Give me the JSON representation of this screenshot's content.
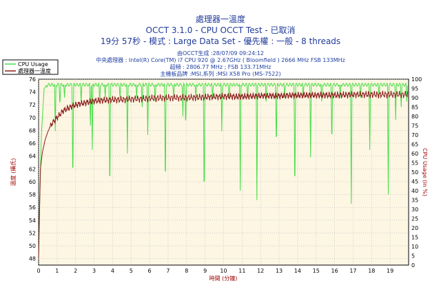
{
  "header": {
    "title_line1": "處理器一溫度",
    "title_line2": "OCCT 3.1.0 - CPU OCCT Test - 已取消",
    "title_line3": "19分 57秒 - 模式 : Large Data Set - 優先權 : 一般 - 8 threads",
    "info_generated": "由OCCT生成 :28/07/09 09:24:12",
    "info_cpu": "中央處理器 : Intel(R) Core(TM) i7 CPU 920 @ 2.67GHz ( Bloomfield ) 2666 MHz FSB 133MHz",
    "info_overclock": "超頻 : 2806.77 MHz ; FSB 133.71MHz",
    "info_board": "主機板品牌 :MSI,系列 :MSI X58 Pro (MS-7522)"
  },
  "chart_data": {
    "type": "line",
    "xlabel": "時間 (分鐘)",
    "ylabel_left": "溫度 (攝氏)",
    "ylabel_right": "CPU Usage (in %)",
    "xlim": [
      0,
      20
    ],
    "ylim_left": [
      47,
      76
    ],
    "ylim_right": [
      0,
      100
    ],
    "x_ticks": [
      0,
      1,
      2,
      3,
      4,
      5,
      6,
      7,
      8,
      9,
      10,
      11,
      12,
      13,
      14,
      15,
      16,
      17,
      18,
      19
    ],
    "y_ticks_left": [
      48,
      50,
      52,
      54,
      56,
      58,
      60,
      62,
      64,
      66,
      68,
      70,
      72,
      74,
      76
    ],
    "y_ticks_right": [
      0,
      5,
      10,
      15,
      20,
      25,
      30,
      35,
      40,
      45,
      50,
      55,
      60,
      65,
      70,
      75,
      80,
      85,
      90,
      95,
      100
    ],
    "grid": true,
    "legend_position": "top-left",
    "colors": {
      "cpu_usage": "#44dd44",
      "temperature": "#8b1a1a",
      "plot_bg": "#fdf6e3",
      "grid": "#b8b8b8"
    },
    "series": [
      {
        "name": "CPU Usage",
        "axis": "right",
        "baseline": 97,
        "x": [
          0,
          0.05,
          0.15,
          0.3,
          0.5,
          1.0,
          1.5,
          2.0,
          3.0,
          5.0,
          8.0,
          12.0,
          16.0,
          20.0
        ],
        "values": [
          5,
          30,
          70,
          95,
          97,
          97,
          97,
          97,
          97,
          97,
          97,
          97,
          97,
          97
        ],
        "drops": [
          {
            "x": 0.9,
            "value": 72
          },
          {
            "x": 1.15,
            "value": 85
          },
          {
            "x": 1.4,
            "value": 90
          },
          {
            "x": 1.85,
            "value": 38
          },
          {
            "x": 2.3,
            "value": 88
          },
          {
            "x": 2.8,
            "value": 75
          },
          {
            "x": 2.9,
            "value": 62
          },
          {
            "x": 3.3,
            "value": 88
          },
          {
            "x": 3.6,
            "value": 90
          },
          {
            "x": 3.85,
            "value": 32
          },
          {
            "x": 4.4,
            "value": 90
          },
          {
            "x": 4.8,
            "value": 60
          },
          {
            "x": 5.3,
            "value": 90
          },
          {
            "x": 5.6,
            "value": 85
          },
          {
            "x": 5.9,
            "value": 70
          },
          {
            "x": 6.3,
            "value": 88
          },
          {
            "x": 6.85,
            "value": 35
          },
          {
            "x": 7.3,
            "value": 90
          },
          {
            "x": 7.8,
            "value": 80
          },
          {
            "x": 7.95,
            "value": 72
          },
          {
            "x": 8.5,
            "value": 90
          },
          {
            "x": 8.95,
            "value": 28
          },
          {
            "x": 9.4,
            "value": 90
          },
          {
            "x": 9.9,
            "value": 72
          },
          {
            "x": 10.3,
            "value": 90
          },
          {
            "x": 10.9,
            "value": 40
          },
          {
            "x": 11.3,
            "value": 90
          },
          {
            "x": 11.8,
            "value": 35
          },
          {
            "x": 12.3,
            "value": 88
          },
          {
            "x": 12.85,
            "value": 60
          },
          {
            "x": 13.3,
            "value": 90
          },
          {
            "x": 13.85,
            "value": 32
          },
          {
            "x": 14.3,
            "value": 90
          },
          {
            "x": 14.7,
            "value": 58
          },
          {
            "x": 15.3,
            "value": 88
          },
          {
            "x": 15.85,
            "value": 62
          },
          {
            "x": 16.3,
            "value": 90
          },
          {
            "x": 16.9,
            "value": 33
          },
          {
            "x": 17.4,
            "value": 90
          },
          {
            "x": 17.9,
            "value": 62
          },
          {
            "x": 18.4,
            "value": 90
          },
          {
            "x": 18.9,
            "value": 38
          },
          {
            "x": 19.3,
            "value": 78
          },
          {
            "x": 19.6,
            "value": 85
          },
          {
            "x": 19.9,
            "value": 88
          }
        ]
      },
      {
        "name": "處理器一溫度",
        "axis": "left",
        "x": [
          0,
          0.05,
          0.1,
          0.2,
          0.35,
          0.5,
          0.7,
          1.0,
          1.3,
          1.6,
          2.0,
          2.5,
          3.0,
          3.5,
          4.0,
          4.5,
          5.0,
          5.5,
          6.0,
          7.0,
          8.0,
          9.0,
          10.0,
          11.0,
          12.0,
          13.0,
          14.0,
          15.0,
          16.0,
          17.0,
          18.0,
          19.0,
          19.97
        ],
        "values": [
          48,
          55,
          62,
          64.5,
          66.5,
          67.8,
          69,
          70,
          71,
          71.5,
          72,
          72.3,
          72.6,
          72.7,
          72.8,
          72.8,
          72.9,
          72.9,
          73,
          73.1,
          73.1,
          73.2,
          73.3,
          73.3,
          73.4,
          73.4,
          73.5,
          73.5,
          73.5,
          73.6,
          73.6,
          73.6,
          73.6
        ]
      }
    ]
  }
}
